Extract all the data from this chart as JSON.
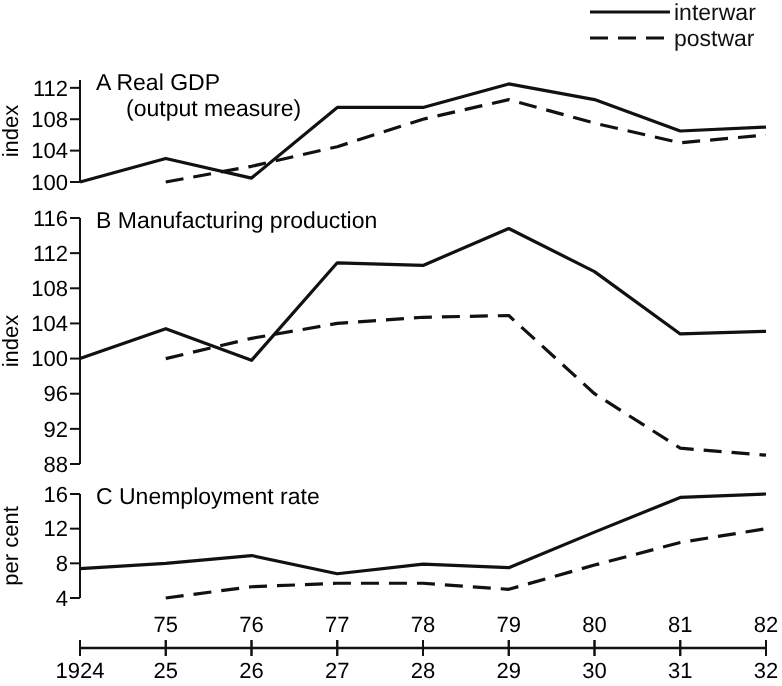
{
  "chart_data": [
    {
      "type": "line",
      "title": "A  Real GDP\n(output measure)",
      "ylabel": "index",
      "x": [
        1924,
        1925,
        1926,
        1927,
        1928,
        1929,
        1930,
        1931,
        1932
      ],
      "xlim": [
        1924,
        1932
      ],
      "ylim": [
        100,
        113
      ],
      "yticks": [
        100,
        104,
        108,
        112
      ],
      "tick_labels": "y",
      "legend": "top right",
      "grid": false,
      "marker": "none",
      "series": [
        {
          "name": "interwar",
          "color": "#111111",
          "line_style": "solid",
          "values": [
            100,
            103,
            100.5,
            109.5,
            109.5,
            112.5,
            110.5,
            106.5,
            107
          ]
        },
        {
          "name": "postwar",
          "color": "#111111",
          "line_style": "dashed",
          "values": [
            null,
            100,
            102,
            104.5,
            108,
            110.5,
            107.5,
            105,
            106
          ]
        }
      ]
    },
    {
      "type": "line",
      "title": "B  Manufacturing production",
      "ylabel": "index",
      "x": [
        1924,
        1925,
        1926,
        1927,
        1928,
        1929,
        1930,
        1931,
        1932
      ],
      "xlim": [
        1924,
        1932
      ],
      "ylim": [
        88,
        116
      ],
      "yticks": [
        88,
        92,
        96,
        100,
        104,
        108,
        112,
        116
      ],
      "tick_labels": "y",
      "grid": false,
      "marker": "none",
      "series": [
        {
          "color": "#111111",
          "line_style": "solid",
          "values": [
            100,
            103.4,
            99.8,
            110.9,
            110.6,
            114.8,
            109.9,
            102.8,
            103.1
          ]
        },
        {
          "color": "#111111",
          "line_style": "dashed",
          "values": [
            null,
            100,
            102.3,
            104,
            104.7,
            104.9,
            96,
            89.8,
            89
          ]
        }
      ]
    },
    {
      "type": "line",
      "title": "C  Unemployment rate",
      "ylabel": "per cent",
      "x": [
        1924,
        1925,
        1926,
        1927,
        1928,
        1929,
        1930,
        1931,
        1932
      ],
      "xlim": [
        1924,
        1932
      ],
      "xticks": [
        1924,
        {
          "value": 1925,
          "label": "25"
        },
        {
          "value": 1926,
          "label": "26"
        },
        {
          "value": 1927,
          "label": "27"
        },
        {
          "value": 1928,
          "label": "28"
        },
        {
          "value": 1929,
          "label": "29"
        },
        {
          "value": 1930,
          "label": "30"
        },
        {
          "value": 1931,
          "label": "31"
        },
        {
          "value": 1932,
          "label": "32"
        }
      ],
      "x2lim": [
        1974,
        1982
      ],
      "x2ticks": [
        {
          "value": 1975,
          "label": "75"
        },
        {
          "value": 1976,
          "label": "76"
        },
        {
          "value": 1977,
          "label": "77"
        },
        {
          "value": 1978,
          "label": "78"
        },
        {
          "value": 1979,
          "label": "79"
        },
        {
          "value": 1980,
          "label": "80"
        },
        {
          "value": 1981,
          "label": "81"
        },
        {
          "value": 1982,
          "label": "82"
        }
      ],
      "ylim": [
        4,
        16
      ],
      "yticks": [
        4,
        8,
        12,
        16
      ],
      "grid": false,
      "marker": "none",
      "series": [
        {
          "color": "#111111",
          "line_style": "solid",
          "values": [
            7.4,
            8,
            8.9,
            6.8,
            7.9,
            7.5,
            11.6,
            15.6,
            16
          ]
        },
        {
          "color": "#111111",
          "line_style": "dashed",
          "values": [
            null,
            4,
            5.3,
            5.7,
            5.7,
            5,
            7.8,
            10.4,
            12
          ]
        }
      ]
    }
  ]
}
